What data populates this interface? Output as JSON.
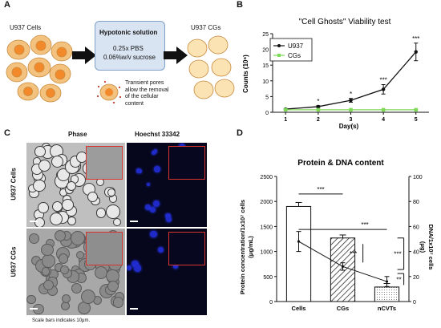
{
  "figure": {
    "panel_labels": [
      "A",
      "B",
      "C",
      "D"
    ]
  },
  "panel_a": {
    "left_label": "U937 Cells",
    "right_label": "U937 CGs",
    "box_title": "Hypotonic solution",
    "box_line1": "0.25x PBS",
    "box_line2": "0.06%w/v sucrose",
    "pore_text": [
      "Transient pores",
      "allow the removal",
      "of the cellular",
      "content"
    ],
    "colors": {
      "cell_outer": "#f4c27f",
      "cell_nucleus": "#f28a2c",
      "cg_fill": "#fbe3b4",
      "box": "#d9e4f2",
      "arrow": "#111111"
    }
  },
  "panel_b": {
    "title": "\"Cell Ghosts\" Viability test",
    "ylabel": "Counts (10⁶)",
    "xlabel": "Day(s)",
    "legend": [
      "U937",
      "CGs"
    ],
    "significance": [
      {
        "day": 2,
        "mark": "*"
      },
      {
        "day": 3,
        "mark": "*"
      },
      {
        "day": 4,
        "mark": "***"
      },
      {
        "day": 5,
        "mark": "***"
      }
    ]
  },
  "panel_c": {
    "col_phase": "Phase",
    "col_hoechst": "Hoechst 33342",
    "row_cells": "U937 Cells",
    "row_cgs": "U937 CGs",
    "scale_note": "Scale bars indicates 10μm."
  },
  "panel_d": {
    "title": "Protein & DNA content",
    "ylabel_left": "Protein concentration/1x10⁷ cells",
    "ylabel_left2": "(μg/mL)",
    "ylabel_right": "DNA/1x10⁷ cells",
    "ylabel_right2": "(μg)",
    "sig": [
      "***",
      "***",
      "***",
      "***",
      "**"
    ]
  },
  "chart_data": [
    {
      "type": "line",
      "title": "\"Cell Ghosts\" Viability test",
      "xlabel": "Day(s)",
      "ylabel": "Counts (10⁶)",
      "x": [
        1,
        2,
        3,
        4,
        5
      ],
      "xlim": [
        0.6,
        5.4
      ],
      "ylim": [
        0,
        25
      ],
      "yticks": [
        0,
        5,
        10,
        15,
        20,
        25
      ],
      "legend_position": "top-left",
      "series": [
        {
          "name": "U937",
          "color": "#111111",
          "values": [
            1.0,
            1.8,
            3.8,
            7.3,
            19.2
          ],
          "errors": [
            0.2,
            0.3,
            0.6,
            1.5,
            2.8
          ]
        },
        {
          "name": "CGs",
          "color": "#7ed957",
          "values": [
            0.8,
            0.8,
            0.8,
            0.8,
            0.8
          ],
          "errors": [
            0.1,
            0.1,
            0.1,
            0.1,
            0.1
          ]
        }
      ]
    },
    {
      "type": "bar",
      "title": "Protein & DNA content",
      "categories": [
        "Cells",
        "CGs",
        "nCVTs"
      ],
      "ylim": [
        0,
        2500
      ],
      "yticks": [
        0,
        500,
        1000,
        1500,
        2000,
        2500
      ],
      "y2lim": [
        0,
        100
      ],
      "y2ticks": [
        0,
        20,
        40,
        60,
        80,
        100
      ],
      "series": [
        {
          "name": "Protein",
          "axis": "left",
          "values": [
            1900,
            1270,
            290
          ],
          "errors": [
            80,
            60,
            70
          ],
          "patterns": [
            "none",
            "hatch",
            "dots"
          ]
        },
        {
          "name": "DNA",
          "axis": "right",
          "values": [
            48,
            28,
            16
          ],
          "errors": [
            8,
            3,
            4
          ]
        }
      ]
    }
  ]
}
